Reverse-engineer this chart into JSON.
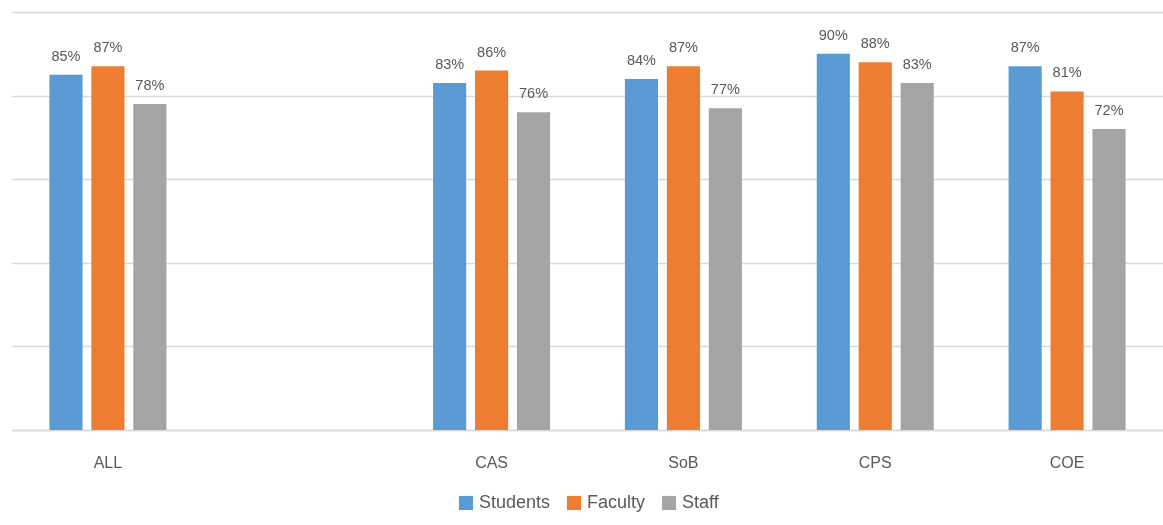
{
  "chart_data": {
    "type": "bar",
    "categories": [
      "ALL",
      null,
      "CAS",
      "SoB",
      "CPS",
      "COE"
    ],
    "series": [
      {
        "name": "Students",
        "color": "#5b9bd5",
        "values": [
          85,
          null,
          83,
          84,
          90,
          87
        ],
        "value_labels": [
          "85%",
          null,
          "83%",
          "84%",
          "90%",
          "87%"
        ]
      },
      {
        "name": "Faculty",
        "color": "#ed7d31",
        "values": [
          87,
          null,
          86,
          87,
          88,
          81
        ],
        "value_labels": [
          "87%",
          null,
          "86%",
          "87%",
          "88%",
          "81%"
        ]
      },
      {
        "name": "Staff",
        "color": "#a5a5a5",
        "values": [
          78,
          null,
          76,
          77,
          83,
          72
        ],
        "value_labels": [
          "78%",
          null,
          "76%",
          "77%",
          "83%",
          "72%"
        ]
      }
    ],
    "ylim": [
      0,
      100
    ],
    "yticks": [
      {
        "value": 0,
        "label": null
      },
      {
        "value": 20,
        "label": null
      },
      {
        "value": 40,
        "label": null
      },
      {
        "value": 60,
        "label": null
      },
      {
        "value": 80,
        "label": null
      },
      {
        "value": 100,
        "label": null
      }
    ],
    "tick_labels": "x",
    "grid": "y",
    "legend": "bottom"
  }
}
